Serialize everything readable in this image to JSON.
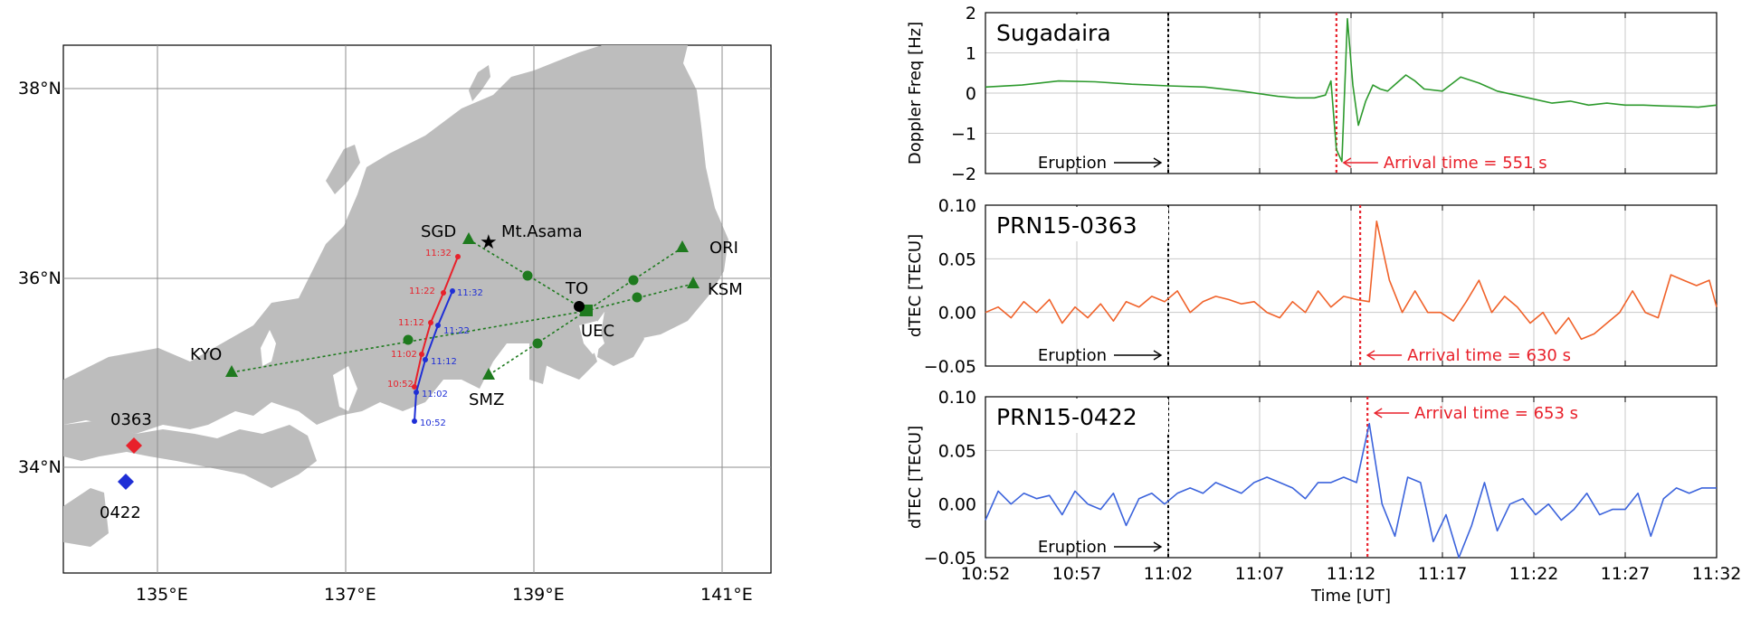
{
  "map": {
    "lat_labels": [
      "38°N",
      "36°N",
      "34°N"
    ],
    "lon_labels": [
      "135°E",
      "137°E",
      "139°E",
      "141°E"
    ],
    "stations": {
      "sgd": "SGD",
      "volcano": "Mt.Asama",
      "to": "TO",
      "uec": "UEC",
      "ori": "ORI",
      "ksm": "KSM",
      "kyo": "KYO",
      "smz": "SMZ"
    },
    "gnss": {
      "r0363": "0363",
      "r0422": "0422"
    },
    "red_track_times": [
      "11:32",
      "11:22",
      "11:12",
      "11:02",
      "10:52"
    ],
    "blue_track_times": [
      "11:32",
      "11:22",
      "11:12",
      "11:02",
      "10:52"
    ],
    "colors": {
      "land": "#bdbdbd",
      "sea": "#ffffff",
      "red": "#e8212b",
      "blue": "#1f2fd6",
      "green": "#1e7a1e"
    }
  },
  "chart_data": [
    {
      "type": "line",
      "title": "Sugadaira",
      "ylabel": "Doppler Freq [Hz]",
      "ylim": [
        -2,
        2
      ],
      "yticks": [
        "2",
        "1",
        "0",
        "−1",
        "−2"
      ],
      "xlim": [
        0,
        40
      ],
      "color": "#2d9a2d",
      "eruption_label": "Eruption",
      "eruption_t": 10,
      "arrival_label": "Arrival time = 551 s",
      "arrival_t": 19.2,
      "series": [
        {
          "x": [
            0,
            2,
            4,
            6,
            8,
            10,
            12,
            14,
            16,
            17,
            18,
            18.6,
            18.9,
            19.2,
            19.5,
            19.8,
            20.1,
            20.4,
            20.8,
            21.2,
            21.6,
            22,
            22.5,
            23,
            23.5,
            24,
            25,
            26,
            27,
            28,
            29,
            30,
            31,
            32,
            33,
            34,
            35,
            36,
            37,
            38,
            39,
            40
          ],
          "values": [
            0.15,
            0.2,
            0.3,
            0.28,
            0.22,
            0.18,
            0.15,
            0.05,
            -0.08,
            -0.12,
            -0.12,
            -0.05,
            0.3,
            -1.4,
            -1.7,
            1.85,
            0.2,
            -0.8,
            -0.2,
            0.2,
            0.1,
            0.05,
            0.25,
            0.45,
            0.3,
            0.1,
            0.05,
            0.4,
            0.25,
            0.05,
            -0.05,
            -0.15,
            -0.25,
            -0.2,
            -0.3,
            -0.25,
            -0.3,
            -0.3,
            -0.32,
            -0.33,
            -0.35,
            -0.3
          ]
        }
      ]
    },
    {
      "type": "line",
      "title": "PRN15-0363",
      "ylabel": "dTEC [TECU]",
      "ylim": [
        -0.05,
        0.1
      ],
      "yticks": [
        "0.10",
        "0.05",
        "0.00",
        "−0.05"
      ],
      "xlim": [
        0,
        40
      ],
      "color": "#f0622a",
      "eruption_label": "Eruption",
      "eruption_t": 10,
      "arrival_label": "Arrival time = 630 s",
      "arrival_t": 20.5,
      "series": [
        {
          "x": [
            0,
            0.7,
            1.4,
            2.1,
            2.8,
            3.5,
            4.2,
            4.9,
            5.6,
            6.3,
            7,
            7.7,
            8.4,
            9.1,
            9.8,
            10.5,
            11.2,
            11.9,
            12.6,
            13.3,
            14,
            14.7,
            15.4,
            16.1,
            16.8,
            17.5,
            18.2,
            18.9,
            19.6,
            20.3,
            21,
            21.4,
            22.1,
            22.8,
            23.5,
            24.2,
            24.9,
            25.6,
            26.3,
            27,
            27.7,
            28.4,
            29.1,
            29.8,
            30.5,
            31.2,
            31.9,
            32.6,
            33.3,
            34,
            34.7,
            35.4,
            36.1,
            36.8,
            37.5,
            38.2,
            38.9,
            39.6,
            40
          ],
          "values": [
            0.0,
            0.005,
            -0.005,
            0.01,
            0.0,
            0.012,
            -0.01,
            0.005,
            -0.005,
            0.008,
            -0.008,
            0.01,
            0.005,
            0.015,
            0.01,
            0.02,
            0.0,
            0.01,
            0.015,
            0.012,
            0.008,
            0.01,
            0.0,
            -0.005,
            0.01,
            0.0,
            0.02,
            0.005,
            0.015,
            0.012,
            0.01,
            0.085,
            0.03,
            0.0,
            0.02,
            0.0,
            0.0,
            -0.008,
            0.01,
            0.03,
            0.0,
            0.015,
            0.005,
            -0.01,
            0.0,
            -0.02,
            -0.005,
            -0.025,
            -0.02,
            -0.01,
            0.0,
            0.02,
            0.0,
            -0.005,
            0.035,
            0.03,
            0.025,
            0.03,
            0.005
          ]
        }
      ]
    },
    {
      "type": "line",
      "title": "PRN15-0422",
      "ylabel": "dTEC [TECU]",
      "ylim": [
        -0.05,
        0.1
      ],
      "yticks": [
        "0.10",
        "0.05",
        "0.00",
        "−0.05"
      ],
      "xtick_labels": [
        "10:52",
        "10:57",
        "11:02",
        "11:07",
        "11:12",
        "11:17",
        "11:22",
        "11:27",
        "11:32"
      ],
      "xlabel": "Time [UT]",
      "xlim": [
        0,
        40
      ],
      "color": "#3b63dc",
      "eruption_label": "Eruption",
      "eruption_t": 10,
      "arrival_label": "Arrival time = 653 s",
      "arrival_t": 20.9,
      "series": [
        {
          "x": [
            0,
            0.7,
            1.4,
            2.1,
            2.8,
            3.5,
            4.2,
            4.9,
            5.6,
            6.3,
            7,
            7.7,
            8.4,
            9.1,
            9.8,
            10.5,
            11.2,
            11.9,
            12.6,
            13.3,
            14,
            14.7,
            15.4,
            16.1,
            16.8,
            17.5,
            18.2,
            18.9,
            19.6,
            20.3,
            21,
            21.7,
            22.4,
            23.1,
            23.8,
            24.5,
            25.2,
            25.9,
            26.6,
            27.3,
            28,
            28.7,
            29.4,
            30.1,
            30.8,
            31.5,
            32.2,
            32.9,
            33.6,
            34.3,
            35,
            35.7,
            36.4,
            37.1,
            37.8,
            38.5,
            39.2,
            40
          ],
          "values": [
            -0.015,
            0.012,
            0.0,
            0.01,
            0.005,
            0.008,
            -0.01,
            0.012,
            0.0,
            -0.005,
            0.01,
            -0.02,
            0.005,
            0.01,
            0.0,
            0.01,
            0.015,
            0.01,
            0.02,
            0.015,
            0.01,
            0.02,
            0.025,
            0.02,
            0.015,
            0.005,
            0.02,
            0.02,
            0.025,
            0.02,
            0.075,
            0.0,
            -0.03,
            0.025,
            0.02,
            -0.035,
            -0.01,
            -0.05,
            -0.02,
            0.02,
            -0.025,
            0.0,
            0.005,
            -0.01,
            0.0,
            -0.015,
            -0.005,
            0.01,
            -0.01,
            -0.005,
            -0.005,
            0.01,
            -0.03,
            0.005,
            0.015,
            0.01,
            0.015,
            0.015
          ]
        }
      ]
    }
  ]
}
